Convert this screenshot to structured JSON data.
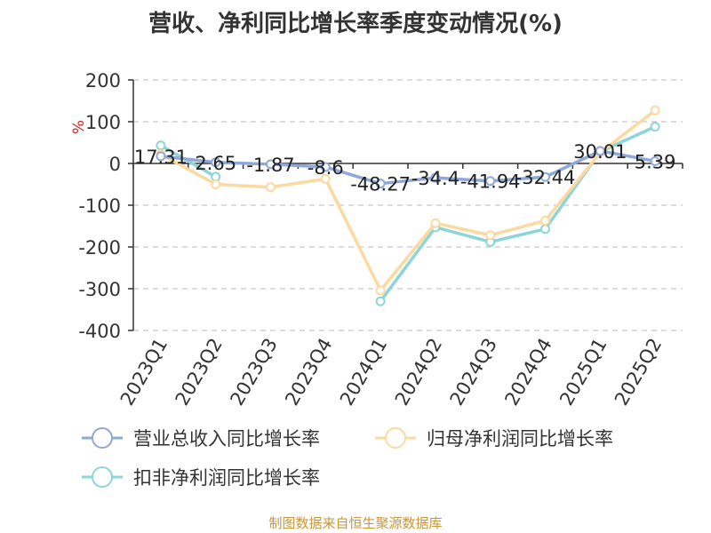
{
  "title": "营收、净利同比增长率季度变动情况(%)",
  "source": "制图数据来自恒生聚源数据库",
  "chart_data": {
    "type": "line",
    "ylabel": "%",
    "ylim": [
      -400,
      200
    ],
    "yticks": [
      200,
      100,
      0,
      -100,
      -200,
      -300,
      -400
    ],
    "grid": true,
    "legend_position": "bottom",
    "categories": [
      "2023Q1",
      "2023Q2",
      "2023Q3",
      "2023Q4",
      "2024Q1",
      "2024Q2",
      "2024Q3",
      "2024Q4",
      "2025Q1",
      "2025Q2"
    ],
    "series": [
      {
        "name": "营业总收入同比增长率",
        "color": "#8fa8d8",
        "values": [
          17.31,
          2.65,
          -1.87,
          -8.6,
          -48.27,
          -34.4,
          -41.94,
          -32.44,
          30.01,
          5.39
        ],
        "labels": [
          "17.31",
          "2.65",
          "-1.87",
          "-8.6",
          "-48.27",
          "-34.4",
          "-41.94",
          "-32.44",
          "30.01",
          "5.39"
        ]
      },
      {
        "name": "归母净利润同比增长率",
        "color": "#fcd9a0",
        "values": [
          22,
          -50,
          -57,
          -37,
          -304,
          -143,
          -172,
          -137,
          26,
          127
        ]
      },
      {
        "name": "扣非净利润同比增长率",
        "color": "#8dd5d8",
        "values": [
          43,
          -32,
          null,
          null,
          -330,
          -153,
          -188,
          -157,
          28,
          88
        ]
      }
    ]
  }
}
